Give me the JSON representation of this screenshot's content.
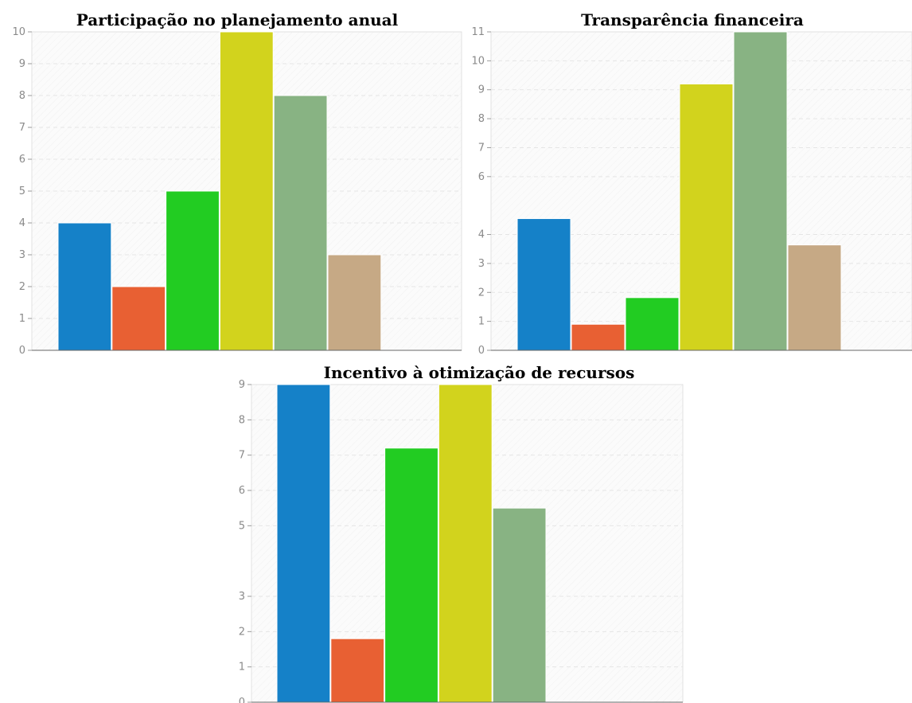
{
  "palette": [
    "#1581c8",
    "#e86033",
    "#22cc22",
    "#d2d31d",
    "#88b383",
    "#c6a985",
    "#ffd9c4"
  ],
  "chart_data": [
    {
      "type": "bar",
      "title": "Participação no planejamento anual",
      "values": [
        4,
        2,
        5,
        10,
        8,
        3,
        0
      ],
      "ylim": [
        0,
        10
      ],
      "yticks": [
        "0",
        "1",
        "2",
        "3",
        "4",
        "5",
        "6",
        "7",
        "8",
        "9",
        "10"
      ],
      "grid": true
    },
    {
      "type": "bar",
      "title": "Transparência financeira",
      "values": [
        4.55,
        0.9,
        1.82,
        9.2,
        11,
        3.64,
        0
      ],
      "ylim": [
        0,
        11
      ],
      "yticks": [
        "0",
        "1",
        "2",
        "3",
        "4",
        "6",
        "7",
        "8",
        "9",
        "10",
        "11"
      ],
      "grid": true
    },
    {
      "type": "bar",
      "title": "Incentivo à otimização de recursos",
      "values": [
        9,
        1.8,
        7.2,
        9,
        5.5,
        0,
        0
      ],
      "ylim": [
        0,
        9
      ],
      "yticks": [
        "0",
        "1",
        "2",
        "3",
        "5",
        "6",
        "7",
        "8",
        "9"
      ],
      "grid": true
    }
  ]
}
